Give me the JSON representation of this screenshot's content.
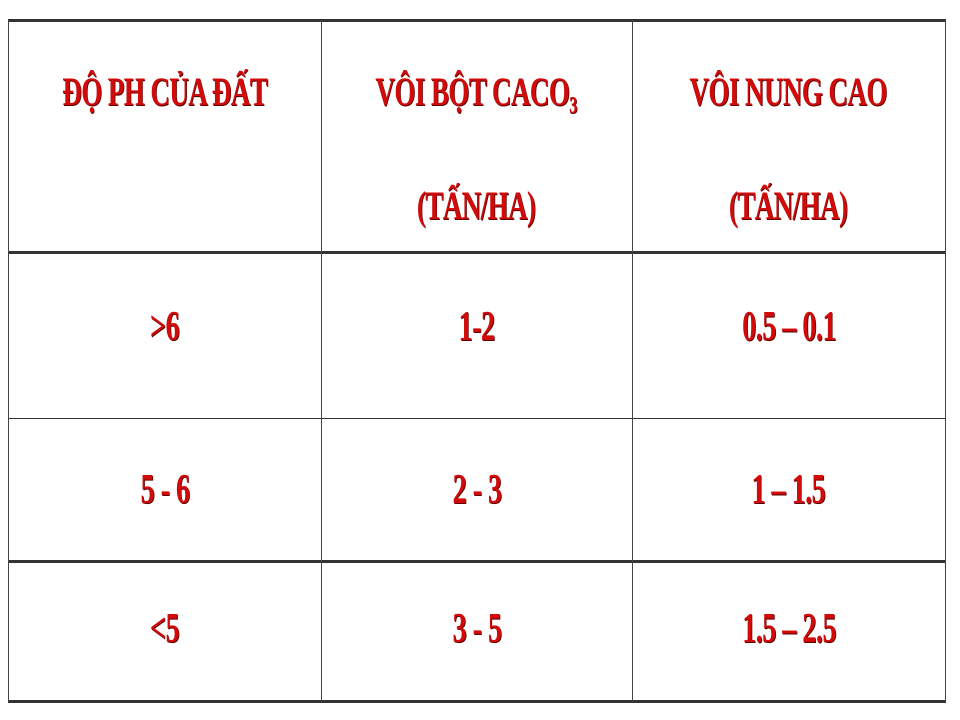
{
  "table": {
    "headers": [
      {
        "line1": "ĐỘ PH CỦA ĐẤT",
        "line2": ""
      },
      {
        "line1": "VÔI BỘT  CACO",
        "subscript": "3",
        "line2": "(TẤN/HA)"
      },
      {
        "line1": "VÔI NUNG CAO",
        "line2": "(TẤN/HA)"
      }
    ],
    "rows": [
      [
        ">6",
        "1-2",
        "0.5 – 0.1"
      ],
      [
        "5 - 6",
        "2 - 3",
        "1 – 1.5"
      ],
      [
        "<5",
        "3 - 5",
        "1.5 – 2.5"
      ]
    ]
  },
  "colors": {
    "text": "#d10a0a",
    "border": "#333333"
  }
}
